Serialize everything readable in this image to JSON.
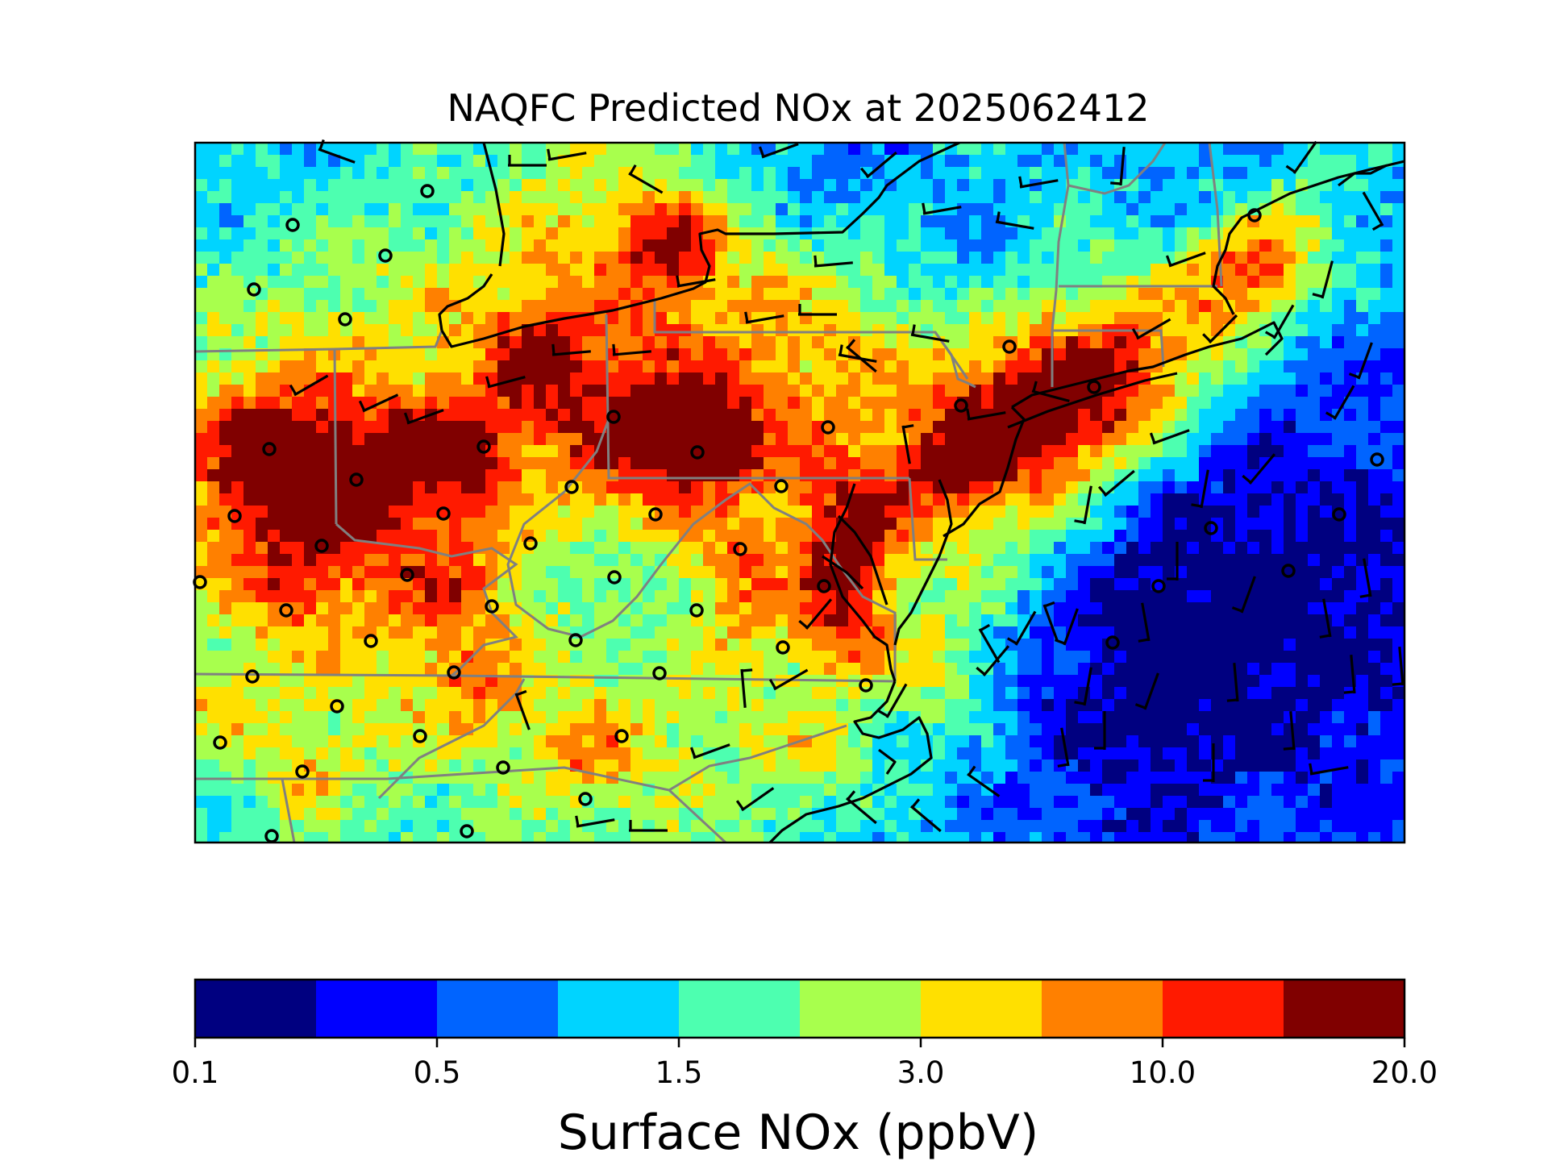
{
  "title": "NAQFC Predicted NOx at 2025062412",
  "colorbar": {
    "label": "Surface NOx (ppbV)",
    "tick_labels": [
      "0.1",
      "0.5",
      "1.5",
      "3.0",
      "10.0",
      "20.0"
    ],
    "colors": [
      "#000080",
      "#0000ff",
      "#0064ff",
      "#00d4ff",
      "#4dffb0",
      "#a8ff4d",
      "#ffe000",
      "#ff8000",
      "#ff1a00",
      "#800000"
    ]
  },
  "map": {
    "region": "Eastern United States / Mid-Atlantic and Northeast",
    "layers": [
      "nox-field",
      "state-borders",
      "coastlines",
      "monitor-sites",
      "wind-barbs"
    ]
  },
  "chart_data": {
    "type": "heatmap",
    "title": "NAQFC Predicted NOx at 2025062412",
    "colorbar_label": "Surface NOx (ppbV)",
    "colorbar_ticks": [
      0.1,
      0.5,
      1.5,
      3.0,
      10.0,
      20.0
    ],
    "colorbar_levels": 10,
    "levels_per_tick_interval": 2
  }
}
